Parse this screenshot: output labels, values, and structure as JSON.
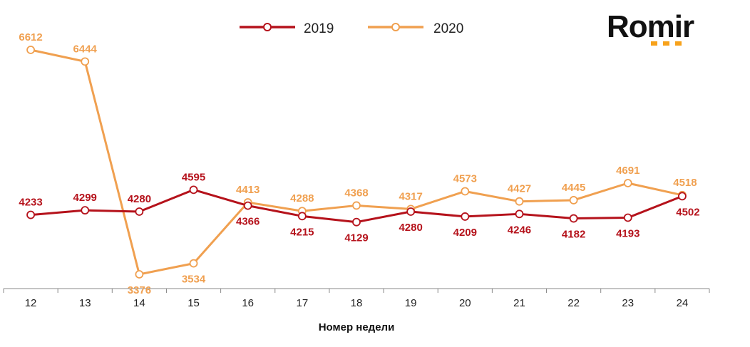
{
  "brand": {
    "logo_text": "Romir",
    "accent": "#f7a21b"
  },
  "chart_data": {
    "type": "line",
    "title": "",
    "xlabel": "Номер недели",
    "ylabel": "",
    "categories": [
      "12",
      "13",
      "14",
      "15",
      "16",
      "17",
      "18",
      "19",
      "20",
      "21",
      "22",
      "23",
      "24"
    ],
    "series": [
      {
        "name": "2019",
        "color": "#b5121b",
        "values": [
          4233,
          4299,
          4280,
          4595,
          4366,
          4215,
          4129,
          4280,
          4209,
          4246,
          4182,
          4193,
          4502
        ]
      },
      {
        "name": "2020",
        "color": "#f0a050",
        "values": [
          6612,
          6444,
          3376,
          3534,
          4413,
          4288,
          4368,
          4317,
          4573,
          4427,
          4445,
          4691,
          4518
        ]
      }
    ],
    "ylim": [
      3200,
      6800
    ],
    "grid": false,
    "legend": "top"
  }
}
